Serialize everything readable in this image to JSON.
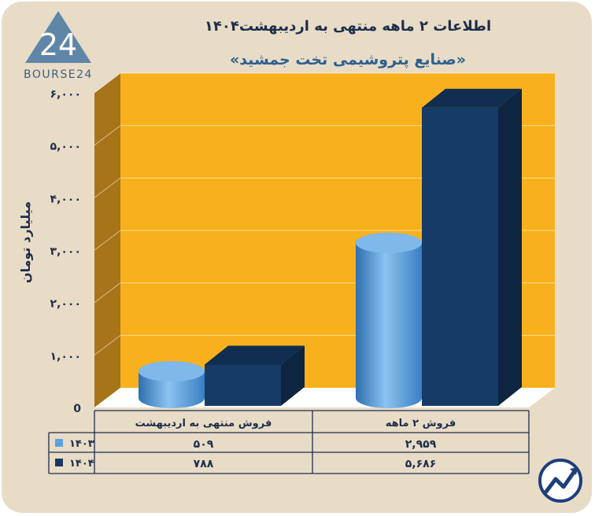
{
  "brand": {
    "name": "BOURSE24",
    "logo_number": "24"
  },
  "header": {
    "title": "اطلاعات ۲ ماهه منتهی به اردیبهشت۱۴۰۴",
    "subtitle": "«صنایع پتروشیمی تخت جمشید»"
  },
  "chart_data": {
    "type": "bar",
    "categories": [
      "فروش منتهی به  اردیبهشت",
      "فروش ۲  ماهه"
    ],
    "series": [
      {
        "name": "۱۴۰۳",
        "values": [
          509,
          2959
        ],
        "display": [
          "۵۰۹",
          "۲,۹۵۹"
        ],
        "color": "#5ba3e0",
        "shape": "cylinder"
      },
      {
        "name": "۱۴۰۴",
        "values": [
          788,
          5686
        ],
        "display": [
          "۷۸۸",
          "۵,۶۸۶"
        ],
        "color": "#17375e",
        "shape": "box"
      }
    ],
    "ylabel": "میلیارد تومان",
    "ylim": [
      0,
      6000
    ],
    "yticks": [
      0,
      1000,
      2000,
      3000,
      4000,
      5000,
      6000
    ],
    "ytick_labels": [
      "0",
      "۱,۰۰۰",
      "۲,۰۰۰",
      "۳,۰۰۰",
      "۴,۰۰۰",
      "۵,۰۰۰",
      "۶,۰۰۰"
    ],
    "grid": true,
    "legend": "data-table-below",
    "colors": {
      "plot_background": "#f8b11c",
      "side_wall": "#a8741a",
      "floor": "#ffffff",
      "frame": "#e8dcc7"
    }
  }
}
